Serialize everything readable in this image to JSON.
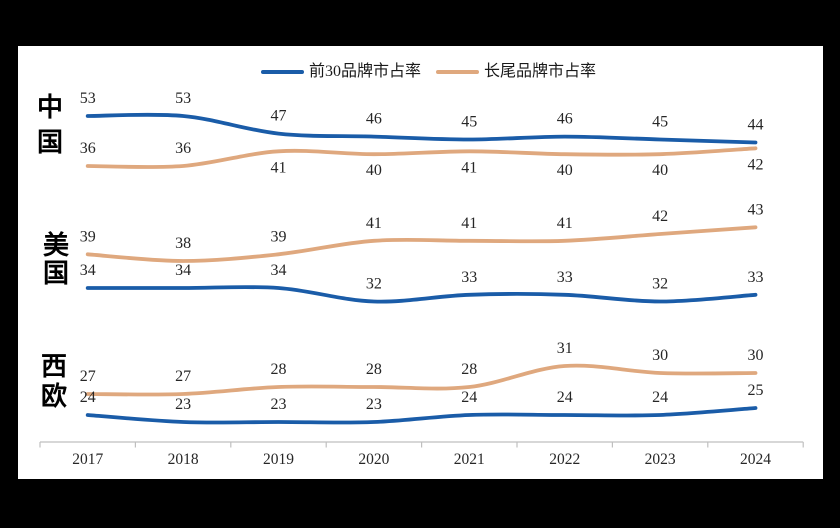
{
  "window": {
    "background": "#000000",
    "canvas_background": "#FFFFFF"
  },
  "legend": {
    "items": [
      {
        "label": "前30品牌市占率",
        "color": "#1A5CA8"
      },
      {
        "label": "长尾品牌市占率",
        "color": "#DFA87E"
      }
    ]
  },
  "chart_data": {
    "type": "line",
    "line_style": "smooth",
    "grid": false,
    "legend_position": "top-center",
    "axis_color": "#BFBFBF",
    "text_color": "#262626",
    "x_labels": [
      "2017",
      "2018",
      "2019",
      "2020",
      "2021",
      "2022",
      "2023",
      "2024"
    ],
    "sections": [
      {
        "region": "中国",
        "series": [
          {
            "name": "前30品牌市占率",
            "color": "#1A5CA8",
            "values": [
              53,
              53,
              47,
              46,
              45,
              46,
              45,
              44
            ],
            "label_side": [
              "above",
              "above",
              "above",
              "above",
              "above",
              "above",
              "above",
              "above"
            ]
          },
          {
            "name": "长尾品牌市占率",
            "color": "#DFA87E",
            "values": [
              36,
              36,
              41,
              40,
              41,
              40,
              40,
              42
            ],
            "label_side": [
              "above",
              "above",
              "below",
              "below",
              "below",
              "below",
              "below",
              "below"
            ]
          }
        ]
      },
      {
        "region": "美国",
        "series": [
          {
            "name": "长尾品牌市占率",
            "color": "#DFA87E",
            "values": [
              39,
              38,
              39,
              41,
              41,
              41,
              42,
              43
            ],
            "label_side": [
              "above",
              "above",
              "above",
              "above",
              "above",
              "above",
              "above",
              "above"
            ]
          },
          {
            "name": "前30品牌市占率",
            "color": "#1A5CA8",
            "values": [
              34,
              34,
              34,
              32,
              33,
              33,
              32,
              33
            ],
            "label_side": [
              "above",
              "above",
              "above",
              "above",
              "above",
              "above",
              "above",
              "above"
            ]
          }
        ]
      },
      {
        "region": "西欧",
        "series": [
          {
            "name": "长尾品牌市占率",
            "color": "#DFA87E",
            "values": [
              27,
              27,
              28,
              28,
              28,
              31,
              30,
              30
            ],
            "label_side": [
              "above",
              "above",
              "above",
              "above",
              "above",
              "above",
              "above",
              "above"
            ]
          },
          {
            "name": "前30品牌市占率",
            "color": "#1A5CA8",
            "values": [
              24,
              23,
              23,
              23,
              24,
              24,
              24,
              25
            ],
            "label_side": [
              "above",
              "above",
              "above",
              "above",
              "above",
              "above",
              "above",
              "above"
            ]
          }
        ]
      }
    ]
  }
}
